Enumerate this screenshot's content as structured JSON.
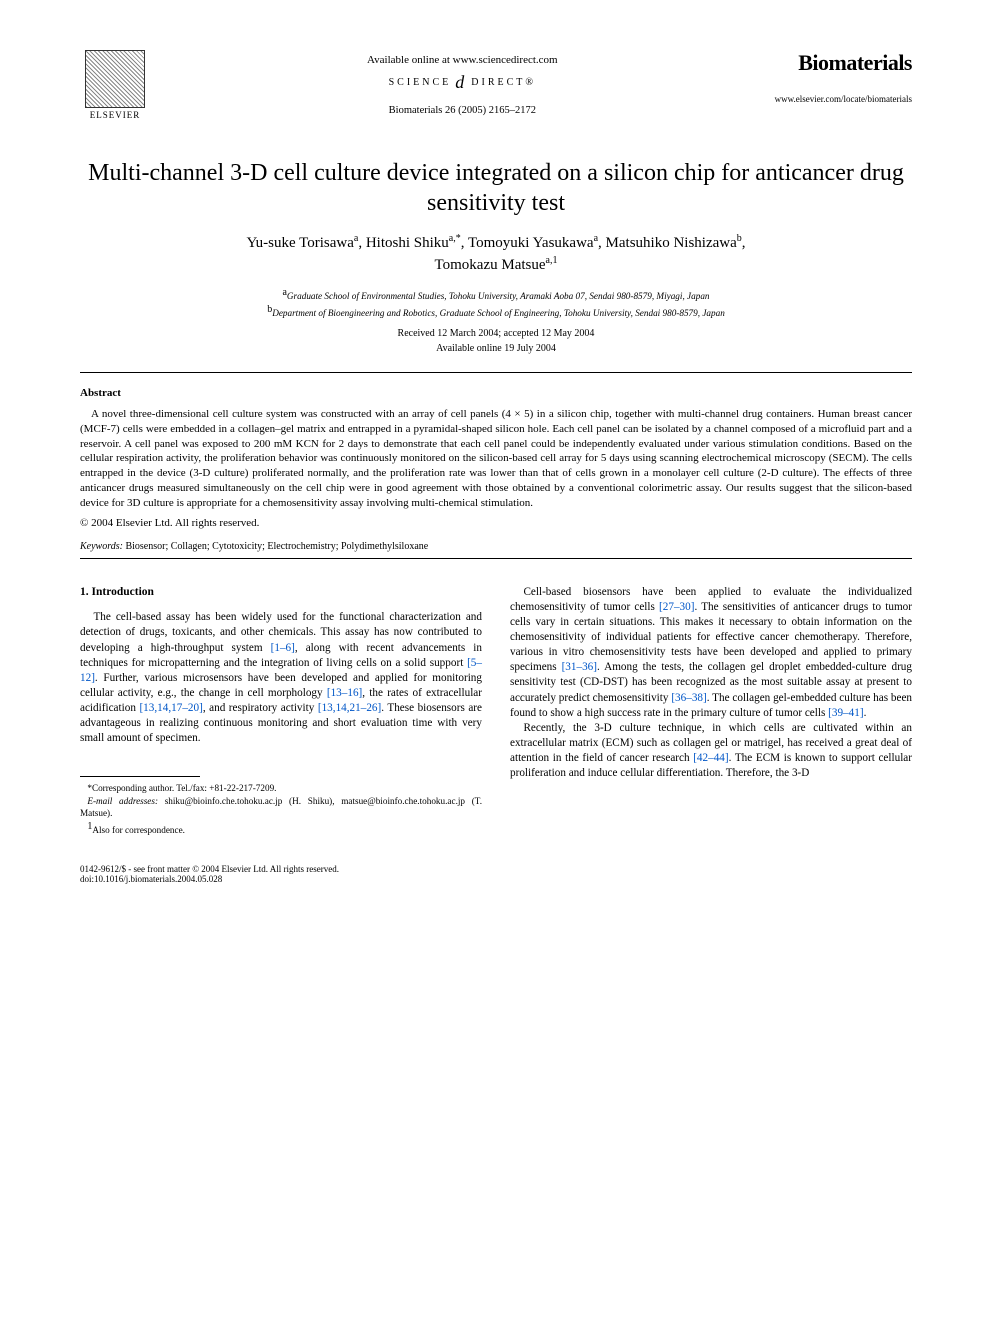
{
  "header": {
    "elsevier_label": "ELSEVIER",
    "available_online": "Available online at www.sciencedirect.com",
    "sd_left": "SCIENCE",
    "sd_swirl": "d",
    "sd_right": "DIRECT®",
    "citation": "Biomaterials 26 (2005) 2165–2172",
    "journal_name": "Biomaterials",
    "journal_url": "www.elsevier.com/locate/biomaterials"
  },
  "title": "Multi-channel 3-D cell culture device integrated on a silicon chip for anticancer drug sensitivity test",
  "authors": {
    "line1_pre": "Yu-suke Torisawa",
    "a1_sup": "a",
    "a2_name": ", Hitoshi Shiku",
    "a2_sup": "a,*",
    "a3_name": ", Tomoyuki Yasukawa",
    "a3_sup": "a",
    "a4_name": ", Matsuhiko Nishizawa",
    "a4_sup": "b",
    "a4_comma": ",",
    "a5_name": "Tomokazu Matsue",
    "a5_sup": "a,1"
  },
  "affiliations": {
    "a_sup": "a",
    "a_text": "Graduate School of Environmental Studies, Tohoku University, Aramaki Aoba 07, Sendai 980-8579, Miyagi, Japan",
    "b_sup": "b",
    "b_text": "Department of Bioengineering and Robotics, Graduate School of Engineering, Tohoku University, Sendai 980-8579, Japan"
  },
  "received": "Received 12 March 2004; accepted 12 May 2004",
  "online": "Available online 19 July 2004",
  "abstract_head": "Abstract",
  "abstract_body": "A novel three-dimensional cell culture system was constructed with an array of cell panels (4 × 5) in a silicon chip, together with multi-channel drug containers. Human breast cancer (MCF-7) cells were embedded in a collagen–gel matrix and entrapped in a pyramidal-shaped silicon hole. Each cell panel can be isolated by a channel composed of a microfluid part and a reservoir. A cell panel was exposed to 200 mM KCN for 2 days to demonstrate that each cell panel could be independently evaluated under various stimulation conditions. Based on the cellular respiration activity, the proliferation behavior was continuously monitored on the silicon-based cell array for 5 days using scanning electrochemical microscopy (SECM). The cells entrapped in the device (3-D culture) proliferated normally, and the proliferation rate was lower than that of cells grown in a monolayer cell culture (2-D culture). The effects of three anticancer drugs measured simultaneously on the cell chip were in good agreement with those obtained by a conventional colorimetric assay. Our results suggest that the silicon-based device for 3D culture is appropriate for a chemosensitivity assay involving multi-chemical stimulation.",
  "copyright_line": "© 2004 Elsevier Ltd. All rights reserved.",
  "keywords_label": "Keywords:",
  "keywords_vals": " Biosensor; Collagen; Cytotoxicity; Electrochemistry; Polydimethylsiloxane",
  "section1_head": "1. Introduction",
  "col1_p1_a": "The cell-based assay has been widely used for the functional characterization and detection of drugs, toxicants, and other chemicals. This assay has now contributed to developing a high-throughput system ",
  "col1_link1": "[1–6]",
  "col1_p1_b": ", along with recent advancements in techniques for micropatterning and the integration of living cells on a solid support ",
  "col1_link2": "[5–12]",
  "col1_p1_c": ". Further, various microsensors have been developed and applied for monitoring cellular activity, e.g., the change in cell morphology ",
  "col1_link3": "[13–16]",
  "col1_p1_d": ", the rates of extracellular acidification ",
  "col1_link4": "[13,14,17–20]",
  "col1_p1_e": ", and respiratory activity ",
  "col1_link5": "[13,14,21–26]",
  "col1_p1_f": ". These biosensors are advantageous in realizing continuous monitoring and short evaluation time with very small amount of specimen.",
  "col2_p1_a": "Cell-based biosensors have been applied to evaluate the individualized chemosensitivity of tumor cells ",
  "col2_link1": "[27–30]",
  "col2_p1_b": ". The sensitivities of anticancer drugs to tumor cells vary in certain situations. This makes it necessary to obtain information on the chemosensitivity of individual patients for effective cancer chemotherapy. Therefore, various in vitro chemosensitivity tests have been developed and applied to primary specimens ",
  "col2_link2": "[31–36]",
  "col2_p1_c": ". Among the tests, the collagen gel droplet embedded-culture drug sensitivity test (CD-DST) has been recognized as the most suitable assay at present to accurately predict chemosensitivity ",
  "col2_link3": "[36–38]",
  "col2_p1_d": ". The collagen gel-embedded culture has been found to show a high success rate in the primary culture of tumor cells ",
  "col2_link4": "[39–41]",
  "col2_p1_e": ".",
  "col2_p2_a": "Recently, the 3-D culture technique, in which cells are cultivated within an extracellular matrix (ECM) such as collagen gel or matrigel, has received a great deal of attention in the field of cancer research ",
  "col2_link5": "[42–44]",
  "col2_p2_b": ". The ECM is known to support cellular proliferation and induce cellular differentiation. Therefore, the 3-D ",
  "footnotes": {
    "corr": "*Corresponding author. Tel./fax: +81-22-217-7209.",
    "email_label": "E-mail addresses:",
    "email_body": " shiku@bioinfo.che.tohoku.ac.jp (H. Shiku), matsue@bioinfo.che.tohoku.ac.jp (T. Matsue).",
    "also_sup": "1",
    "also": "Also for correspondence."
  },
  "bottom": {
    "left1": "0142-9612/$ - see front matter © 2004 Elsevier Ltd. All rights reserved.",
    "left2": "doi:10.1016/j.biomaterials.2004.05.028"
  },
  "colors": {
    "link": "#0056c7",
    "text": "#000000",
    "bg": "#ffffff"
  }
}
